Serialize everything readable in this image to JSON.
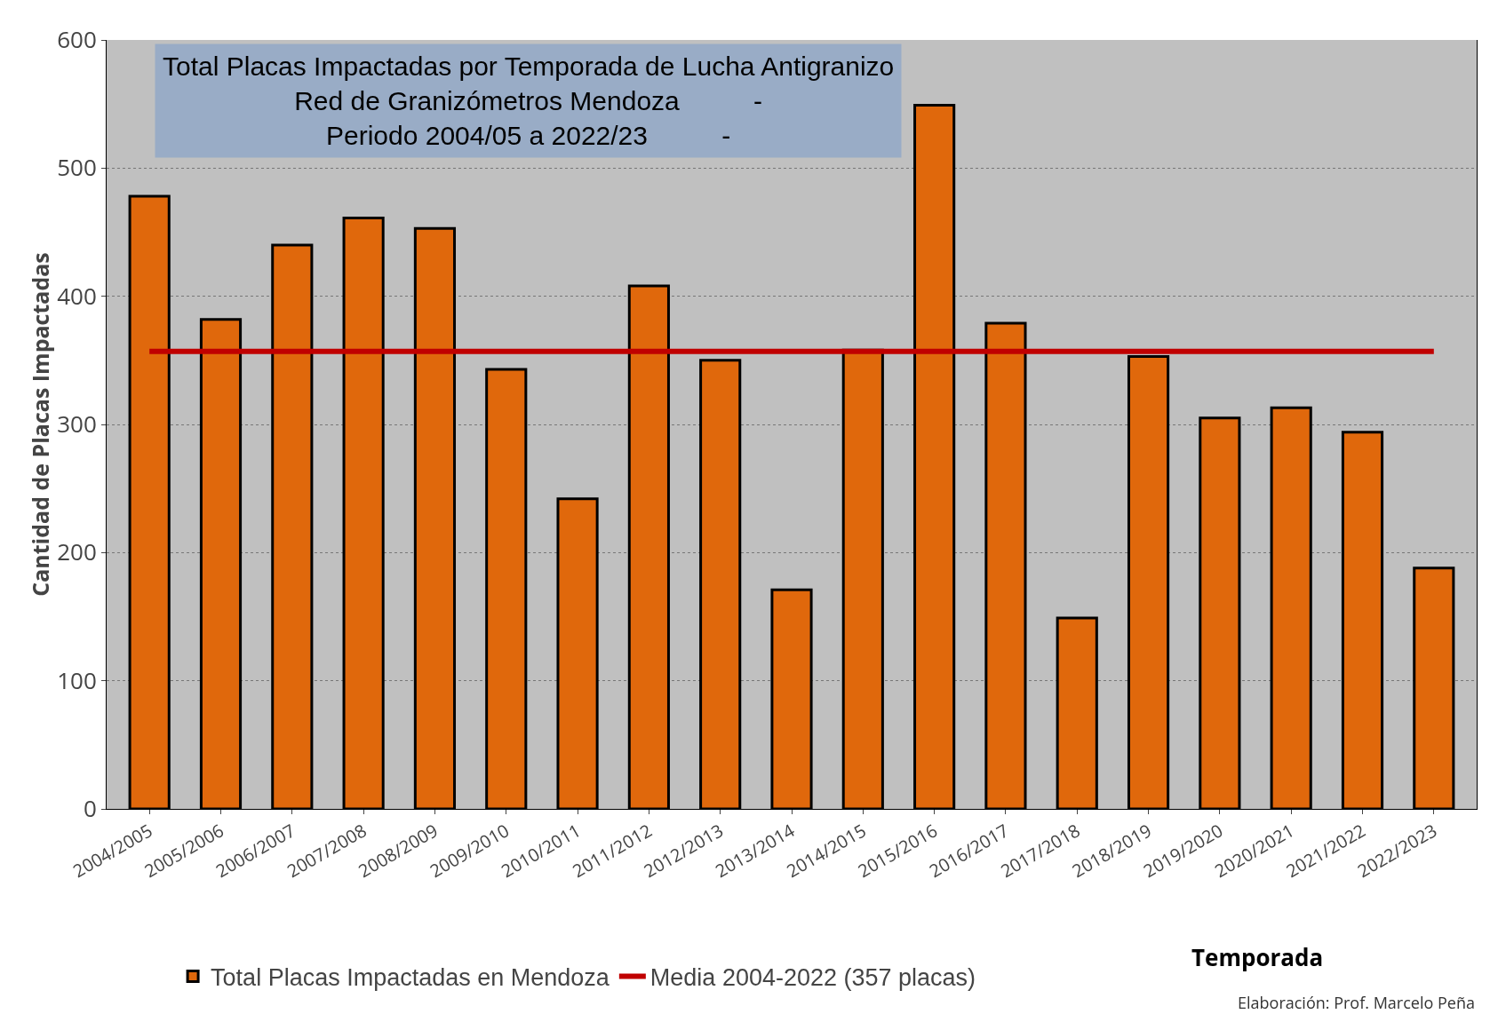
{
  "chart_data": {
    "type": "bar",
    "title": "Total Placas Impactadas por Temporada de Lucha Antigranizo\nRed de Granizómetros Mendoza          -\nPeriodo 2004/05 a 2022/23          -",
    "xlabel": "Temporada",
    "ylabel": "Cantidad de Placas Impactadas",
    "categories": [
      "2004/2005",
      "2005/2006",
      "2006/2007",
      "2007/2008",
      "2008/2009",
      "2009/2010",
      "2010/2011",
      "2011/2012",
      "2012/2013",
      "2013/2014",
      "2014/2015",
      "2015/2016",
      "2016/2017",
      "2017/2018",
      "2018/2019",
      "2019/2020",
      "2020/2021",
      "2021/2022",
      "2022/2023"
    ],
    "series": [
      {
        "name": "Total Placas Impactadas en Mendoza",
        "color": "#e0680c",
        "values": [
          478,
          382,
          440,
          461,
          453,
          343,
          242,
          408,
          350,
          171,
          358,
          549,
          379,
          149,
          353,
          305,
          313,
          294,
          188
        ]
      },
      {
        "name": "Media 2004-2022 (357 placas)",
        "type": "line",
        "color": "#c00000",
        "values": [
          357,
          357,
          357,
          357,
          357,
          357,
          357,
          357,
          357,
          357,
          357,
          357,
          357,
          357,
          357,
          357,
          357,
          357,
          357
        ]
      }
    ],
    "ylim": [
      0,
      600
    ],
    "yticks": [
      0,
      100,
      200,
      300,
      400,
      500,
      600
    ],
    "grid": "y",
    "legend": "bottom",
    "annotations": [
      "Elaboración: Prof. Marcelo Peña"
    ]
  }
}
